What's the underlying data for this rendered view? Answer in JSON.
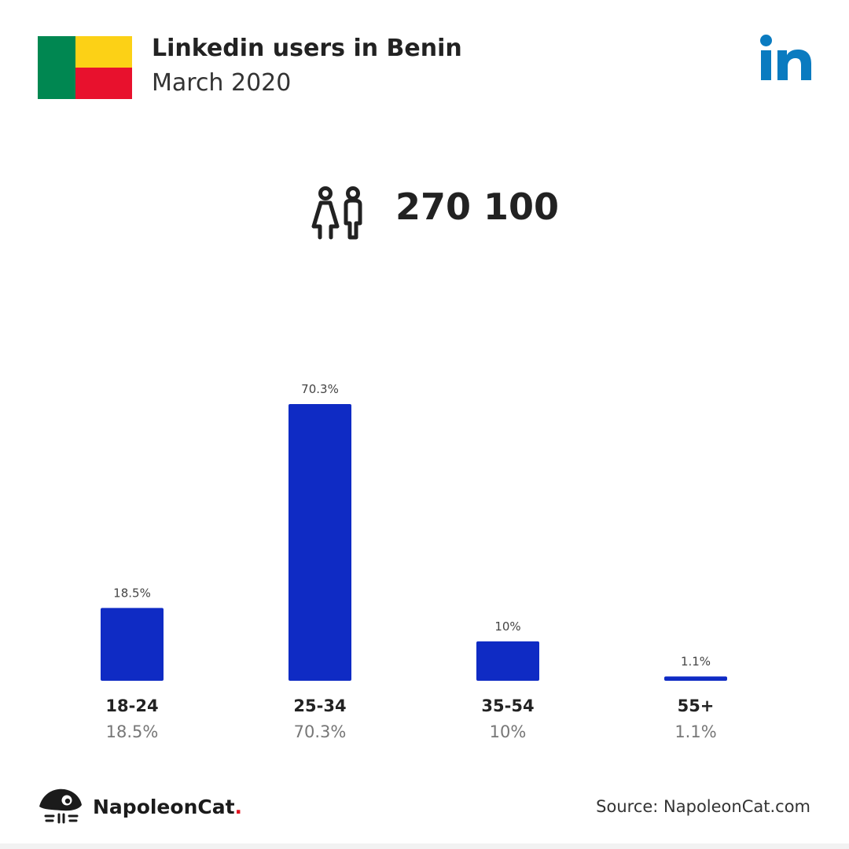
{
  "header": {
    "title": "Linkedin users in Benin",
    "subtitle": "March 2020",
    "flag_colors": {
      "green": "#008751",
      "yellow": "#FCD116",
      "red": "#E8112D"
    },
    "logo_icon": "linkedin-icon",
    "logo_color": "#0A7BC0"
  },
  "summary": {
    "icon": "users-icon",
    "total": "270 100"
  },
  "chart_data": {
    "type": "bar",
    "categories": [
      "18-24",
      "25-34",
      "35-54",
      "55+"
    ],
    "values": [
      18.5,
      70.3,
      10,
      1.1
    ],
    "value_labels": [
      "18.5%",
      "70.3%",
      "10%",
      "1.1%"
    ],
    "bar_color": "#0F2BC4",
    "ylim": [
      0,
      70.3
    ],
    "grid": false,
    "legend": "none"
  },
  "footer": {
    "brand_icon": "napoleoncat-logo-icon",
    "brand_name": "NapoleonCat",
    "brand_dot": ".",
    "source": "Source: NapoleonCat.com"
  }
}
